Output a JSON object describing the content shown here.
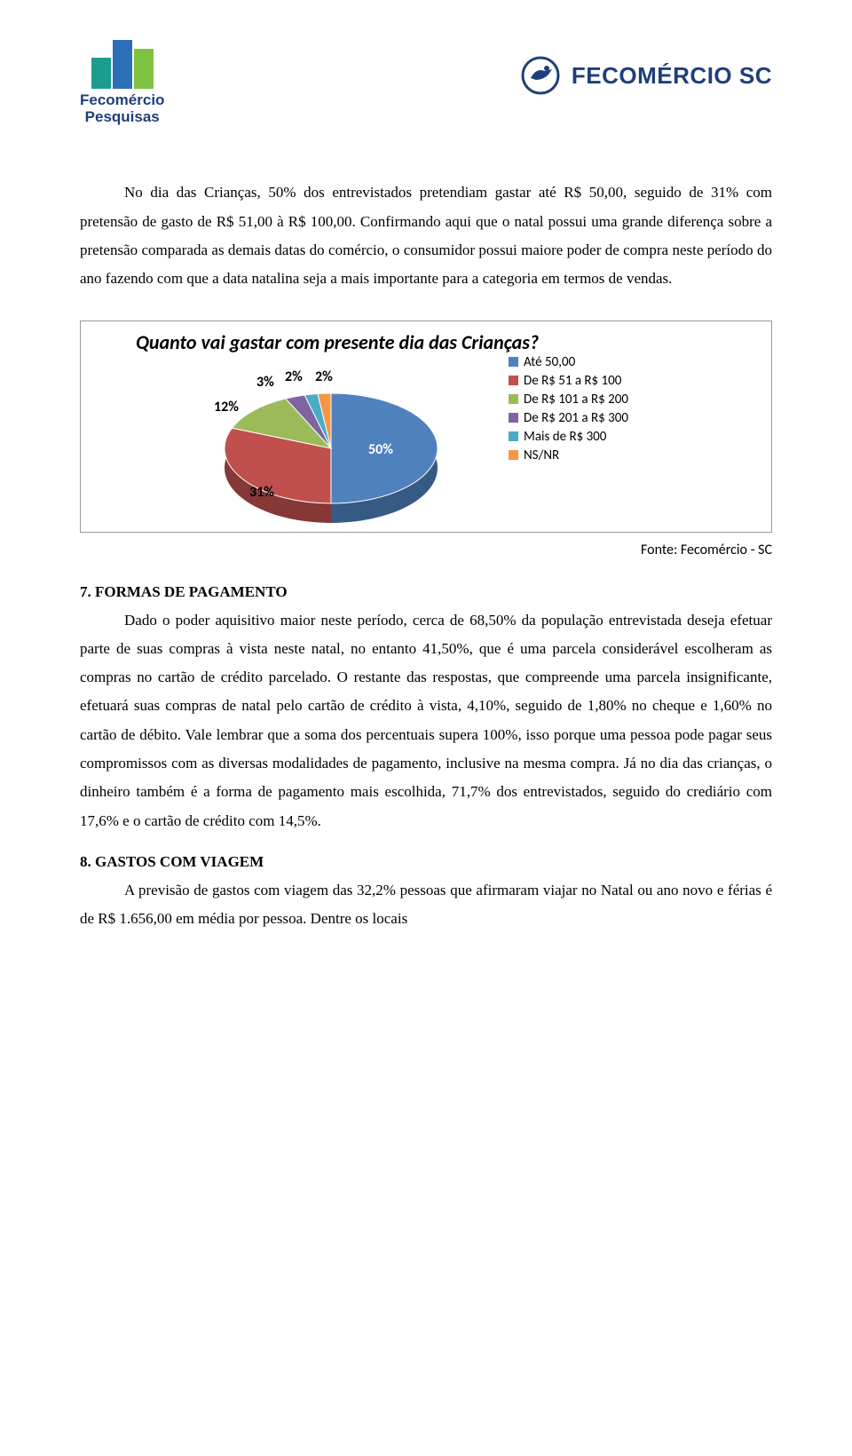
{
  "header": {
    "logo_left_line1": "Fecomércio",
    "logo_left_line2": "Pesquisas",
    "logo_right_text": "FECOMÉRCIO SC",
    "bar_colors": [
      "#1a9c8f",
      "#2d6fb8",
      "#7fc241"
    ]
  },
  "intro_paragraph": "No dia das Crianças, 50% dos entrevistados pretendiam gastar até R$ 50,00, seguido de 31% com pretensão de gasto de R$ 51,00 à R$ 100,00. Confirmando aqui que o natal possui uma grande diferença sobre a pretensão comparada as demais datas do comércio, o consumidor possui maiore poder de compra neste período do ano fazendo com que a data natalina seja a mais importante para a categoria em termos de vendas.",
  "chart": {
    "type": "pie",
    "title": "Quanto vai gastar com presente dia das Crianças?",
    "background_color": "#ffffff",
    "border_color": "#999999",
    "title_fontsize": 22,
    "label_fontsize": 16,
    "legend_fontsize": 15,
    "slices": [
      {
        "label": "Até 50,00",
        "value": 50,
        "pct_text": "50%",
        "color": "#4f81bd"
      },
      {
        "label": "De R$ 51 a R$ 100",
        "value": 31,
        "pct_text": "31%",
        "color": "#c0504d"
      },
      {
        "label": "De R$ 101 a R$ 200",
        "value": 12,
        "pct_text": "12%",
        "color": "#9bbb59"
      },
      {
        "label": "De R$ 201 a R$ 300",
        "value": 3,
        "pct_text": "3%",
        "color": "#8064a2"
      },
      {
        "label": "Mais de R$ 300",
        "value": 2,
        "pct_text": "2%",
        "color": "#4bacc6"
      },
      {
        "label": "NS/NR",
        "value": 2,
        "pct_text": "2%",
        "color": "#f79646"
      }
    ],
    "source": "Fonte: Fecomércio - SC"
  },
  "section7": {
    "title": "7. FORMAS DE PAGAMENTO",
    "body": "Dado o poder aquisitivo maior neste período, cerca de 68,50% da população entrevistada deseja efetuar parte de suas compras à vista neste natal, no entanto 41,50%, que é uma parcela considerável escolheram as compras no cartão de crédito parcelado. O restante das respostas, que compreende uma parcela insignificante, efetuará suas compras de natal pelo cartão de crédito à vista, 4,10%, seguido de 1,80% no cheque e 1,60% no cartão de débito. Vale lembrar que a soma dos percentuais supera 100%, isso porque uma pessoa pode pagar seus compromissos com as diversas modalidades de pagamento, inclusive na mesma compra. Já no dia das crianças, o dinheiro também é a forma de pagamento mais escolhida, 71,7% dos entrevistados, seguido do crediário com 17,6% e o cartão de crédito com 14,5%."
  },
  "section8": {
    "title": "8. GASTOS COM VIAGEM",
    "body": "A previsão de gastos com viagem das 32,2% pessoas que afirmaram viajar no Natal ou ano novo e férias é de R$ 1.656,00 em média por pessoa. Dentre os locais"
  }
}
